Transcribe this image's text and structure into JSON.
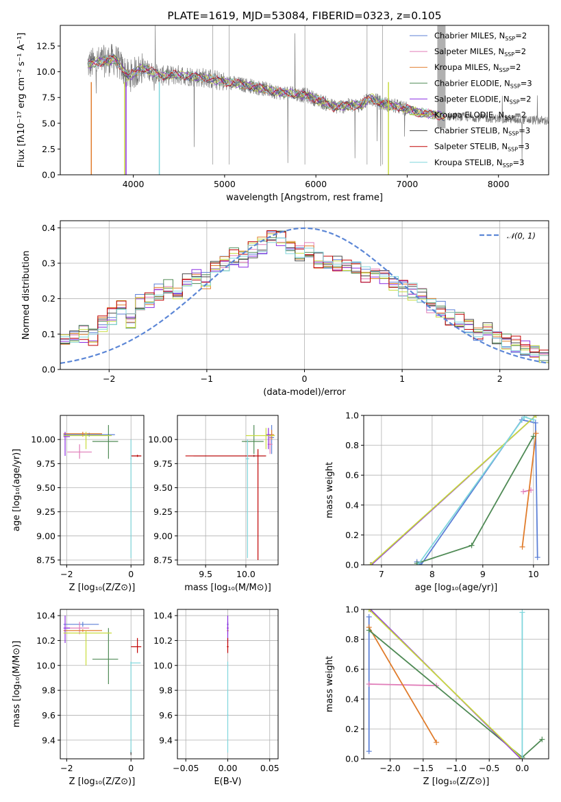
{
  "palette": {
    "c1": "#5b7fd6",
    "c2": "#e07cb8",
    "c3": "#e07b2a",
    "c4": "#4f8a55",
    "c5": "#8a2be2",
    "c6": "#c8dc3c",
    "c7": "#454545",
    "c8": "#c00000",
    "c9": "#7fd6dc",
    "spectrum": "#7a7a7a",
    "normal": "#5b86d6"
  },
  "chart_data": [
    {
      "id": "spectrum",
      "type": "line",
      "title": "PLATE=1619, MJD=53084, FIBERID=0323, z=0.105",
      "xlabel": "wavelength [Angstrom, rest frame]",
      "ylabel": "Flux [fλ10⁻¹⁷ erg cm⁻² s⁻¹ A⁻¹]",
      "xlim": [
        3200,
        8550
      ],
      "ylim": [
        0,
        14.5
      ],
      "xticks": [
        "4000",
        "5000",
        "6000",
        "7000",
        "8000"
      ],
      "yticks": [
        "0.0",
        "2.5",
        "5.0",
        "7.5",
        "10.0",
        "12.5"
      ],
      "continuum": {
        "x": [
          3500,
          3600,
          3800,
          3950,
          4100,
          4300,
          4500,
          4800,
          5000,
          5300,
          5600,
          5900,
          6200,
          6500,
          6600,
          6700,
          6900,
          7100,
          7400
        ],
        "y": [
          10.7,
          10.9,
          11.2,
          9.5,
          10.4,
          9.6,
          9.7,
          9.4,
          9.0,
          8.6,
          8.0,
          7.7,
          6.6,
          6.8,
          7.5,
          7.0,
          6.6,
          6.1,
          5.7
        ]
      },
      "legend": [
        {
          "name": "Chabrier MILES, N",
          "sub": "SSP",
          "suffix": "=2",
          "color": "c1"
        },
        {
          "name": "Salpeter MILES, N",
          "sub": "SSP",
          "suffix": "=2",
          "color": "c2"
        },
        {
          "name": "Kroupa MILES, N",
          "sub": "SSP",
          "suffix": "=2",
          "color": "c3"
        },
        {
          "name": "Chabrier ELODIE, N",
          "sub": "SSP",
          "suffix": "=3",
          "color": "c4"
        },
        {
          "name": "Salpeter ELODIE, N",
          "sub": "SSP",
          "suffix": "=2",
          "color": "c5"
        },
        {
          "name": "Kroupa ELODIE, N",
          "sub": "SSP",
          "suffix": "=2",
          "color": "c6"
        },
        {
          "name": "Chabrier STELIB, N",
          "sub": "SSP",
          "suffix": "=3",
          "color": "c7"
        },
        {
          "name": "Salpeter STELIB, N",
          "sub": "SSP",
          "suffix": "=3",
          "color": "c8"
        },
        {
          "name": "Kroupa STELIB, N",
          "sub": "SSP",
          "suffix": "=3",
          "color": "c9"
        }
      ],
      "legend_placement": "top-right"
    },
    {
      "id": "residuals",
      "type": "line",
      "xlabel": "(data-model)/error",
      "ylabel": "Normed distribution",
      "xlim": [
        -2.5,
        2.5
      ],
      "ylim": [
        0,
        0.42
      ],
      "xticks": [
        "−2",
        "−1",
        "0",
        "1",
        "2"
      ],
      "yticks": [
        "0.0",
        "0.1",
        "0.2",
        "0.3",
        "0.4"
      ],
      "grid": true,
      "normal_curve": {
        "mean": 0,
        "sigma": 1,
        "legend": "𝒩(0, 1)"
      },
      "base_histogram": [
        0.08,
        0.09,
        0.1,
        0.09,
        0.13,
        0.15,
        0.17,
        0.14,
        0.19,
        0.2,
        0.22,
        0.24,
        0.22,
        0.25,
        0.26,
        0.25,
        0.29,
        0.3,
        0.32,
        0.31,
        0.34,
        0.35,
        0.37,
        0.37,
        0.35,
        0.33,
        0.34,
        0.31,
        0.31,
        0.3,
        0.3,
        0.29,
        0.27,
        0.28,
        0.26,
        0.24,
        0.23,
        0.22,
        0.21,
        0.18,
        0.17,
        0.15,
        0.14,
        0.12,
        0.1,
        0.11,
        0.09,
        0.08,
        0.07,
        0.06,
        0.05,
        0.04
      ],
      "legend_placement": "top-right"
    },
    {
      "id": "age-vs-Z",
      "type": "scatter",
      "xlabel": "Z [log₁₀(Z/Z⊙)]",
      "ylabel": "age  [log₁₀(age/yr)]",
      "xlim": [
        -2.2,
        0.4
      ],
      "ylim": [
        8.7,
        10.25
      ],
      "xticks": [
        "−2",
        "0"
      ],
      "yticks": [
        "8.75",
        "9.00",
        "9.25",
        "9.50",
        "9.75",
        "10.00"
      ],
      "points": [
        {
          "x": -1.3,
          "y": 10.05,
          "xlo": -2.1,
          "xhi": -0.5,
          "ylo": 10.03,
          "yhi": 10.07,
          "c": "c1"
        },
        {
          "x": -1.6,
          "y": 9.87,
          "xlo": -1.98,
          "xhi": -1.22,
          "ylo": 9.8,
          "yhi": 9.95,
          "c": "c2"
        },
        {
          "x": -1.5,
          "y": 10.06,
          "xlo": -2.1,
          "xhi": -0.9,
          "ylo": 10.03,
          "yhi": 10.08,
          "c": "c3"
        },
        {
          "x": -0.7,
          "y": 9.98,
          "xlo": -1.2,
          "xhi": -0.4,
          "ylo": 9.8,
          "yhi": 10.15,
          "c": "c4"
        },
        {
          "x": -2.05,
          "y": 10.03,
          "xlo": -2.1,
          "xhi": -1.9,
          "ylo": 9.83,
          "yhi": 10.08,
          "c": "c5"
        },
        {
          "x": -1.4,
          "y": 10.04,
          "xlo": -2.1,
          "xhi": -0.6,
          "ylo": 9.9,
          "yhi": 10.08,
          "c": "c6"
        },
        {
          "x": 0.2,
          "y": 9.83,
          "xlo": 0.0,
          "xhi": 0.32,
          "ylo": 9.82,
          "yhi": 9.84,
          "c": "c7"
        },
        {
          "x": 0.2,
          "y": 9.83,
          "xlo": 0.0,
          "xhi": 0.32,
          "ylo": 9.82,
          "yhi": 9.84,
          "c": "c8"
        },
        {
          "x": 0.0,
          "y": 9.8,
          "xlo": -0.02,
          "xhi": 0.02,
          "ylo": 8.77,
          "yhi": 10.0,
          "c": "c9"
        }
      ]
    },
    {
      "id": "age-vs-mass",
      "type": "scatter",
      "xlabel": "mass [log₁₀(M/M⊙)]",
      "ylabel": "",
      "xlim": [
        9.15,
        10.4
      ],
      "ylim": [
        8.7,
        10.25
      ],
      "xticks": [
        "9.5",
        "10.0"
      ],
      "yticks": [
        "8.75",
        "9.00",
        "9.25",
        "9.50",
        "9.75",
        "10.00"
      ],
      "points": [
        {
          "x": 10.32,
          "y": 10.02,
          "xlo": 10.29,
          "xhi": 10.35,
          "ylo": 9.85,
          "yhi": 10.15,
          "c": "c1"
        },
        {
          "x": 10.3,
          "y": 9.95,
          "xlo": 10.27,
          "xhi": 10.33,
          "ylo": 9.85,
          "yhi": 10.05,
          "c": "c2"
        },
        {
          "x": 10.32,
          "y": 10.05,
          "xlo": 10.29,
          "xhi": 10.35,
          "ylo": 10.0,
          "yhi": 10.1,
          "c": "c3"
        },
        {
          "x": 10.1,
          "y": 9.98,
          "xlo": 9.95,
          "xhi": 10.22,
          "ylo": 9.85,
          "yhi": 10.15,
          "c": "c4"
        },
        {
          "x": 10.28,
          "y": 10.05,
          "xlo": 10.25,
          "xhi": 10.31,
          "ylo": 9.9,
          "yhi": 10.12,
          "c": "c5"
        },
        {
          "x": 10.25,
          "y": 10.04,
          "xlo": 10.0,
          "xhi": 10.36,
          "ylo": 9.9,
          "yhi": 10.12,
          "c": "c6"
        },
        {
          "x": 10.1,
          "y": 9.83,
          "xlo": 9.35,
          "xhi": 10.25,
          "ylo": 9.82,
          "yhi": 9.84,
          "c": "c7"
        },
        {
          "x": 10.15,
          "y": 9.83,
          "xlo": 9.25,
          "xhi": 10.25,
          "ylo": 8.75,
          "yhi": 9.9,
          "c": "c8"
        },
        {
          "x": 10.02,
          "y": 9.8,
          "xlo": 10.0,
          "xhi": 10.04,
          "ylo": 8.77,
          "yhi": 10.0,
          "c": "c9"
        }
      ]
    },
    {
      "id": "weight-vs-age",
      "type": "line",
      "xlabel": "age  [log₁₀(age/yr)]",
      "ylabel": "mass weight",
      "xlim": [
        6.65,
        10.3
      ],
      "ylim": [
        0,
        1.0
      ],
      "xticks": [
        "7",
        "8",
        "9",
        "10"
      ],
      "yticks": [
        "0.0",
        "0.2",
        "0.4",
        "0.6",
        "0.8",
        "1.0"
      ],
      "series": [
        {
          "c": "c1",
          "x": [
            7.7,
            7.78,
            9.77,
            10.04,
            10.08
          ],
          "y": [
            0.02,
            0.0,
            0.97,
            0.95,
            0.05
          ]
        },
        {
          "c": "c2",
          "x": [
            9.8,
            9.95
          ],
          "y": [
            0.49,
            0.5
          ]
        },
        {
          "c": "c3",
          "x": [
            9.78,
            10.05
          ],
          "y": [
            0.12,
            0.88
          ]
        },
        {
          "c": "c4",
          "x": [
            7.7,
            8.78,
            10.0
          ],
          "y": [
            0.01,
            0.13,
            0.86
          ]
        },
        {
          "c": "c5",
          "x": [
            6.8,
            10.05
          ],
          "y": [
            0.0,
            1.0
          ]
        },
        {
          "c": "c6",
          "x": [
            6.78,
            10.05
          ],
          "y": [
            0.0,
            1.0
          ]
        },
        {
          "c": "c9",
          "x": [
            7.72,
            9.82,
            10.0
          ],
          "y": [
            0.0,
            0.99,
            0.97
          ]
        }
      ]
    },
    {
      "id": "mass-vs-Z",
      "type": "scatter",
      "xlabel": "Z [log₁₀(Z/Z⊙)]",
      "ylabel": "mass [log₁₀(M/M⊙)]",
      "xlim": [
        -2.2,
        0.4
      ],
      "ylim": [
        9.25,
        10.45
      ],
      "xticks": [
        "−2",
        "0"
      ],
      "yticks": [
        "9.4",
        "9.6",
        "9.8",
        "10.0",
        "10.2",
        "10.4"
      ],
      "points": [
        {
          "x": -1.5,
          "y": 10.33,
          "xlo": -2.1,
          "xhi": -1.0,
          "ylo": 10.31,
          "yhi": 10.35,
          "c": "c1"
        },
        {
          "x": -1.6,
          "y": 10.3,
          "xlo": -2.0,
          "xhi": -1.3,
          "ylo": 10.25,
          "yhi": 10.35,
          "c": "c2"
        },
        {
          "x": -1.5,
          "y": 10.28,
          "xlo": -2.1,
          "xhi": -0.9,
          "ylo": 10.27,
          "yhi": 10.29,
          "c": "c3"
        },
        {
          "x": -0.7,
          "y": 10.05,
          "xlo": -1.2,
          "xhi": -0.4,
          "ylo": 9.85,
          "yhi": 10.3,
          "c": "c4"
        },
        {
          "x": -2.05,
          "y": 10.3,
          "xlo": -2.1,
          "xhi": -1.9,
          "ylo": 10.18,
          "yhi": 10.4,
          "c": "c5"
        },
        {
          "x": -1.4,
          "y": 10.26,
          "xlo": -2.1,
          "xhi": -0.6,
          "ylo": 10.0,
          "yhi": 10.28,
          "c": "c6"
        },
        {
          "x": 0.0,
          "y": 9.3,
          "xlo": -0.02,
          "xhi": 0.02,
          "ylo": 9.28,
          "yhi": 9.32,
          "c": "c7"
        },
        {
          "x": 0.2,
          "y": 10.15,
          "xlo": 0.0,
          "xhi": 0.32,
          "ylo": 10.1,
          "yhi": 10.22,
          "c": "c8"
        },
        {
          "x": 0.0,
          "y": 10.02,
          "xlo": -0.02,
          "xhi": 0.3,
          "ylo": 9.3,
          "yhi": 10.03,
          "c": "c9"
        }
      ]
    },
    {
      "id": "mass-vs-ebv",
      "type": "scatter",
      "xlabel": "E(B-V)",
      "ylabel": "",
      "xlim": [
        -0.06,
        0.06
      ],
      "ylim": [
        9.25,
        10.45
      ],
      "xticks": [
        "−0.05",
        "0.00",
        "0.05"
      ],
      "yticks": [
        "9.4",
        "9.6",
        "9.8",
        "10.0",
        "10.2",
        "10.4"
      ],
      "points": [
        {
          "x": 0.0,
          "y": 10.33,
          "xlo": -0.001,
          "xhi": 0.001,
          "ylo": 10.31,
          "yhi": 10.35,
          "c": "c1"
        },
        {
          "x": 0.0,
          "y": 10.3,
          "xlo": -0.001,
          "xhi": 0.001,
          "ylo": 10.25,
          "yhi": 10.35,
          "c": "c2"
        },
        {
          "x": 0.0,
          "y": 10.28,
          "xlo": -0.001,
          "xhi": 0.001,
          "ylo": 10.27,
          "yhi": 10.29,
          "c": "c3"
        },
        {
          "x": 0.0,
          "y": 10.3,
          "xlo": -0.001,
          "xhi": 0.001,
          "ylo": 10.18,
          "yhi": 10.4,
          "c": "c5"
        },
        {
          "x": 0.0,
          "y": 10.15,
          "xlo": -0.001,
          "xhi": 0.001,
          "ylo": 10.1,
          "yhi": 10.22,
          "c": "c8"
        },
        {
          "x": 0.0,
          "y": 9.6,
          "xlo": -0.001,
          "xhi": 0.001,
          "ylo": 9.3,
          "yhi": 10.03,
          "c": "c9"
        }
      ]
    },
    {
      "id": "weight-vs-Z",
      "type": "line",
      "xlabel": "Z [log₁₀(Z/Z⊙)]",
      "ylabel": "mass weight",
      "xlim": [
        -2.4,
        0.4
      ],
      "ylim": [
        0,
        1.0
      ],
      "xticks": [
        "−2.0",
        "−1.5",
        "−1.0",
        "−0.5",
        "0.0"
      ],
      "yticks": [
        "0.0",
        "0.2",
        "0.4",
        "0.6",
        "0.8",
        "1.0"
      ],
      "series": [
        {
          "c": "c1",
          "x": [
            -2.32,
            -2.32
          ],
          "y": [
            0.05,
            0.95
          ]
        },
        {
          "c": "c2",
          "x": [
            -2.32,
            -1.3
          ],
          "y": [
            0.5,
            0.49
          ]
        },
        {
          "c": "c3",
          "x": [
            -2.32,
            -1.3
          ],
          "y": [
            0.88,
            0.11
          ]
        },
        {
          "c": "c4",
          "x": [
            -2.32,
            0.0,
            0.3
          ],
          "y": [
            0.86,
            0.01,
            0.13
          ]
        },
        {
          "c": "c5",
          "x": [
            -2.3,
            -0.02
          ],
          "y": [
            1.0,
            0.0
          ]
        },
        {
          "c": "c6",
          "x": [
            -2.32,
            0.0
          ],
          "y": [
            1.0,
            0.0
          ]
        },
        {
          "c": "c9",
          "x": [
            0.0,
            0.0
          ],
          "y": [
            0.0,
            0.98
          ]
        }
      ]
    }
  ]
}
